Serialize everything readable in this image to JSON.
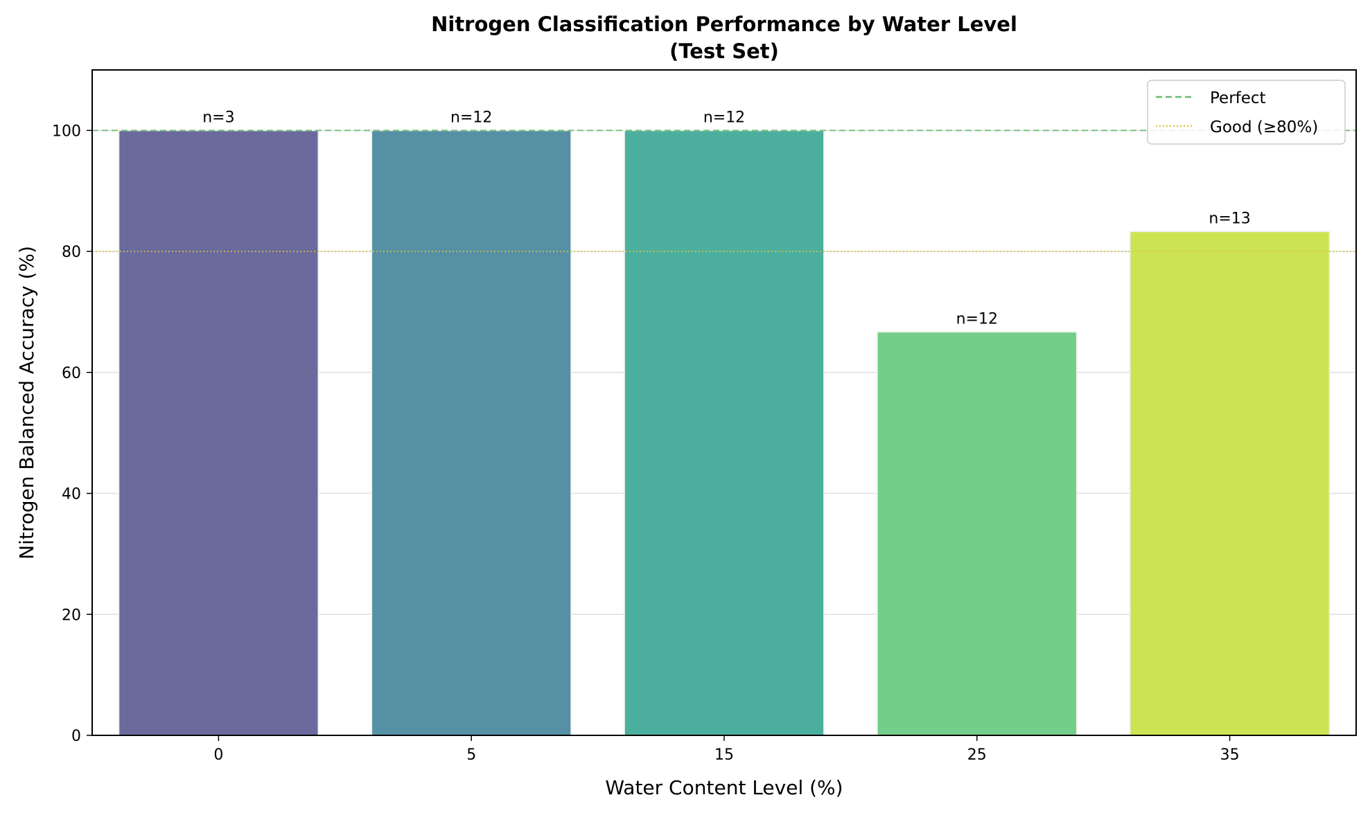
{
  "chart_data": {
    "type": "bar",
    "title": "Nitrogen Classification Performance by Water Level",
    "subtitle": "(Test Set)",
    "xlabel": "Water Content Level (%)",
    "ylabel": "Nitrogen Balanced Accuracy (%)",
    "categories": [
      "0",
      "5",
      "15",
      "25",
      "35"
    ],
    "values": [
      100.0,
      100.0,
      100.0,
      66.7,
      83.3
    ],
    "annotations": [
      "n=3",
      "n=12",
      "n=12",
      "n=12",
      "n=13"
    ],
    "colors": [
      "#6a6a9c",
      "#5690a4",
      "#4caf9e",
      "#72ce88",
      "#cce352"
    ],
    "ylim": [
      0,
      110
    ],
    "yticks": [
      0,
      20,
      40,
      60,
      80,
      100
    ],
    "grid": "y",
    "reference_lines": [
      {
        "label": "Perfect",
        "y": 100,
        "style": "dashed",
        "color": "#66bb6a"
      },
      {
        "label": "Good (≥80%)",
        "y": 80,
        "style": "dotted",
        "color": "#d4c34a"
      }
    ],
    "legend_position": "upper right"
  }
}
